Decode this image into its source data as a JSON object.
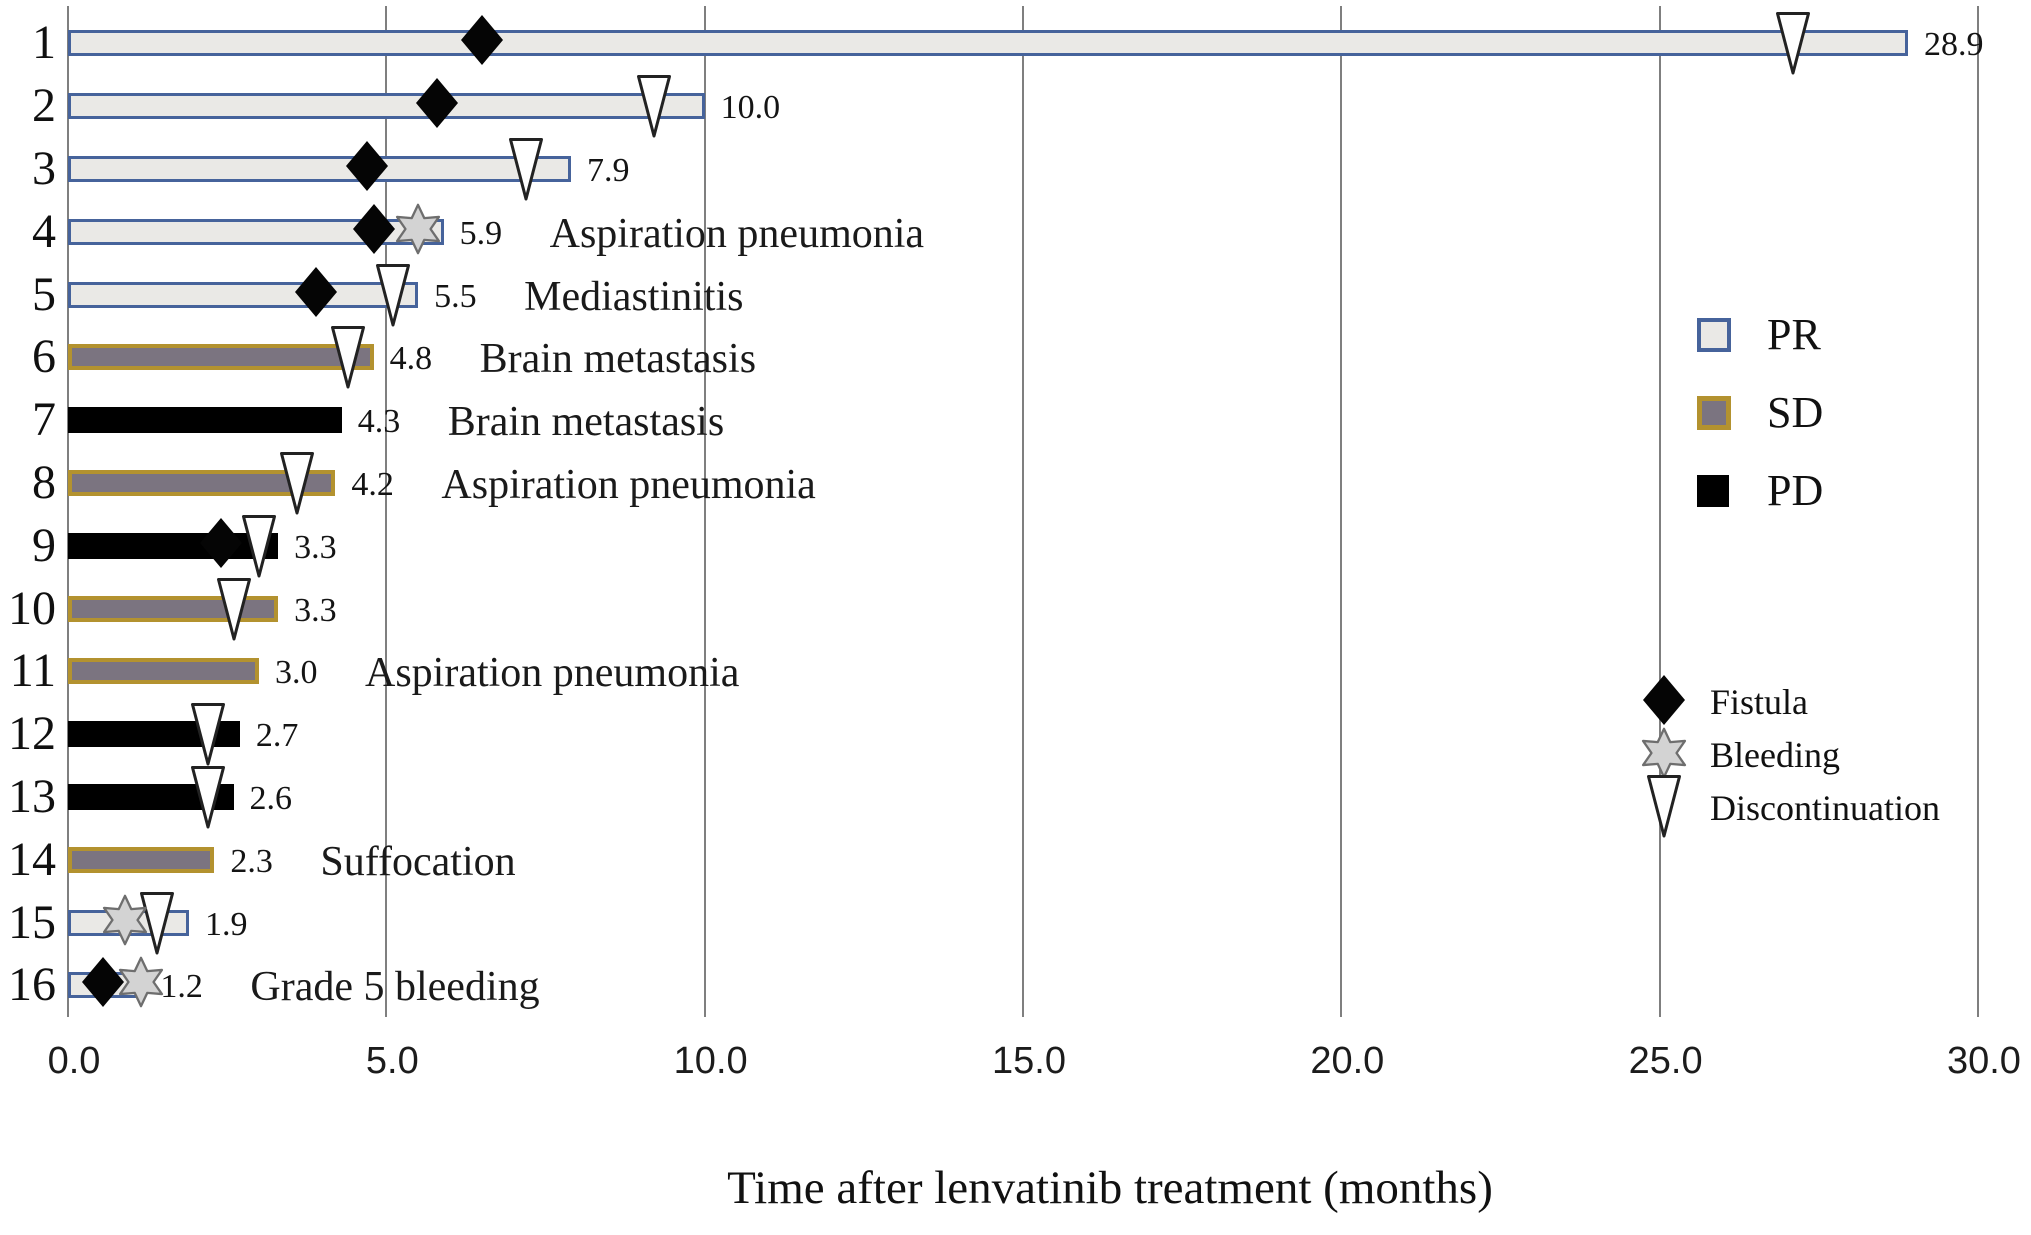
{
  "chart_data": {
    "type": "bar",
    "variant": "swimmer-plot",
    "title": "",
    "xlabel": "Time after lenvatinib treatment (months)",
    "ylabel": "",
    "xlim": [
      0,
      30
    ],
    "grid": "vertical",
    "legend_position": "right",
    "xticks": [
      {
        "value": 0,
        "label": "0.0"
      },
      {
        "value": 5,
        "label": "5.0"
      },
      {
        "value": 10,
        "label": "10.0"
      },
      {
        "value": 15,
        "label": "15.0"
      },
      {
        "value": 20,
        "label": "20.0"
      },
      {
        "value": 25,
        "label": "25.0"
      },
      {
        "value": 30,
        "label": "30.0"
      }
    ],
    "patients": [
      {
        "id": "1",
        "response": "PR",
        "months": 28.9,
        "value_label": "28.9",
        "fistula": 6.5,
        "bleeding": null,
        "discontinuation": 27.1,
        "annotation": ""
      },
      {
        "id": "2",
        "response": "PR",
        "months": 10.0,
        "value_label": "10.0",
        "fistula": 5.8,
        "bleeding": null,
        "discontinuation": 9.2,
        "annotation": ""
      },
      {
        "id": "3",
        "response": "PR",
        "months": 7.9,
        "value_label": "7.9",
        "fistula": 4.7,
        "bleeding": null,
        "discontinuation": 7.2,
        "annotation": ""
      },
      {
        "id": "4",
        "response": "PR",
        "months": 5.9,
        "value_label": "5.9",
        "fistula": 4.8,
        "bleeding": 5.5,
        "discontinuation": null,
        "annotation": "Aspiration pneumonia"
      },
      {
        "id": "5",
        "response": "PR",
        "months": 5.5,
        "value_label": "5.5",
        "fistula": 3.9,
        "bleeding": null,
        "discontinuation": 5.1,
        "annotation": "Mediastinitis"
      },
      {
        "id": "6",
        "response": "SD",
        "months": 4.8,
        "value_label": "4.8",
        "fistula": null,
        "bleeding": null,
        "discontinuation": 4.4,
        "annotation": "Brain metastasis"
      },
      {
        "id": "7",
        "response": "PD",
        "months": 4.3,
        "value_label": "4.3",
        "fistula": null,
        "bleeding": null,
        "discontinuation": null,
        "annotation": "Brain metastasis"
      },
      {
        "id": "8",
        "response": "SD",
        "months": 4.2,
        "value_label": "4.2",
        "fistula": null,
        "bleeding": null,
        "discontinuation": 3.6,
        "annotation": "Aspiration pneumonia"
      },
      {
        "id": "9",
        "response": "PD",
        "months": 3.3,
        "value_label": "3.3",
        "fistula": 2.4,
        "bleeding": null,
        "discontinuation": 3.0,
        "annotation": ""
      },
      {
        "id": "10",
        "response": "SD",
        "months": 3.3,
        "value_label": "3.3",
        "fistula": null,
        "bleeding": null,
        "discontinuation": 2.6,
        "annotation": ""
      },
      {
        "id": "11",
        "response": "SD",
        "months": 3.0,
        "value_label": "3.0",
        "fistula": null,
        "bleeding": null,
        "discontinuation": null,
        "annotation": "Aspiration pneumonia"
      },
      {
        "id": "12",
        "response": "PD",
        "months": 2.7,
        "value_label": "2.7",
        "fistula": null,
        "bleeding": null,
        "discontinuation": 2.2,
        "annotation": ""
      },
      {
        "id": "13",
        "response": "PD",
        "months": 2.6,
        "value_label": "2.6",
        "fistula": null,
        "bleeding": null,
        "discontinuation": 2.2,
        "annotation": ""
      },
      {
        "id": "14",
        "response": "SD",
        "months": 2.3,
        "value_label": "2.3",
        "fistula": null,
        "bleeding": null,
        "discontinuation": null,
        "annotation": "Suffocation"
      },
      {
        "id": "15",
        "response": "PR",
        "months": 1.9,
        "value_label": "1.9",
        "fistula": null,
        "bleeding": 0.9,
        "discontinuation": 1.4,
        "annotation": ""
      },
      {
        "id": "16",
        "response": "PR",
        "months": 1.2,
        "value_label": "1.2",
        "fistula": 0.55,
        "bleeding": 1.15,
        "discontinuation": null,
        "annotation": "Grade 5 bleeding"
      }
    ],
    "response_legend": [
      {
        "key": "PR",
        "label": "PR"
      },
      {
        "key": "SD",
        "label": "SD"
      },
      {
        "key": "PD",
        "label": "PD"
      }
    ],
    "marker_legend": [
      {
        "key": "fistula",
        "label": "Fistula"
      },
      {
        "key": "bleeding",
        "label": "Bleeding"
      },
      {
        "key": "discontinuation",
        "label": "Discontinuation"
      }
    ],
    "colors": {
      "pr_fill": "#eae9e6",
      "pr_border": "#46639b",
      "sd_fill": "#7b7480",
      "sd_border": "#b3922f",
      "pd_fill": "#000000",
      "gridline": "#7f7f7f",
      "diamond_fill": "#050505",
      "star_fill": "#d3d3d3",
      "star_stroke": "#6e6e6e",
      "triangle_fill": "#ffffff",
      "triangle_stroke": "#222222"
    }
  }
}
